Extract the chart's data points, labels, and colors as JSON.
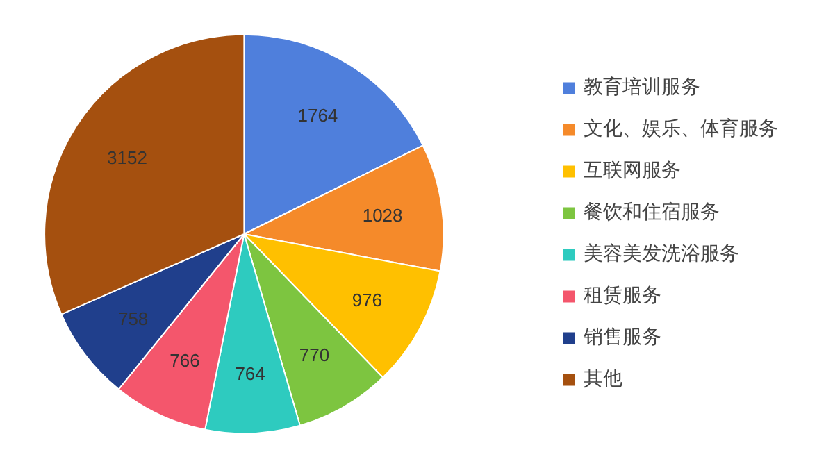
{
  "chart_data": {
    "type": "pie",
    "categories": [
      "教育培训服务",
      "文化、娱乐、体育服务",
      "互联网服务",
      "餐饮和住宿服务",
      "美容美发洗浴服务",
      "租赁服务",
      "销售服务",
      "其他"
    ],
    "values": [
      1764,
      1028,
      976,
      770,
      764,
      766,
      758,
      3152
    ],
    "colors": [
      "#4f7fdc",
      "#f58a2a",
      "#ffc000",
      "#7dc540",
      "#2ecbbf",
      "#f4566c",
      "#203f8c",
      "#a5500f"
    ],
    "data_labels": true,
    "legend": "right"
  }
}
